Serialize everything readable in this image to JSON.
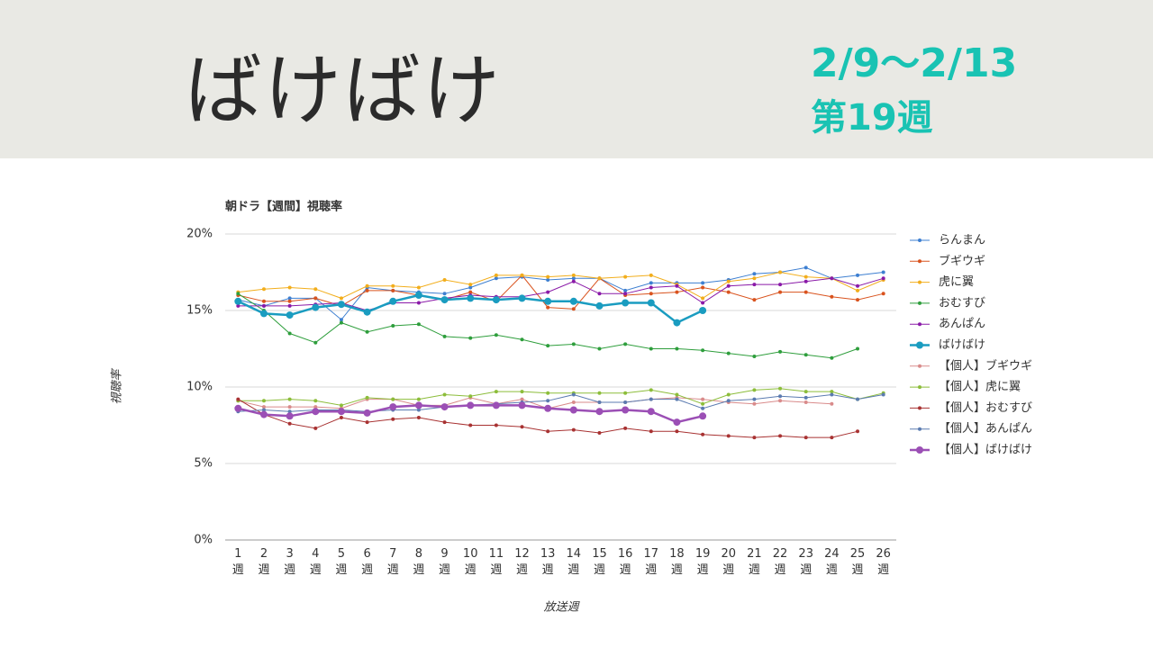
{
  "header": {
    "title": "ばけばけ",
    "date_range": "2/9～2/13",
    "week": "第19週"
  },
  "chart_data": {
    "type": "line",
    "title": "朝ドラ【週間】視聴率",
    "y_label": "視聴率",
    "x_label": "放送週",
    "categories": [
      "1\n週",
      "2\n週",
      "3\n週",
      "4\n週",
      "5\n週",
      "6\n週",
      "7\n週",
      "8\n週",
      "9\n週",
      "10\n週",
      "11\n週",
      "12\n週",
      "13\n週",
      "14\n週",
      "15\n週",
      "16\n週",
      "17\n週",
      "18\n週",
      "19\n週",
      "20\n週",
      "21\n週",
      "22\n週",
      "23\n週",
      "24\n週",
      "25\n週",
      "26\n週"
    ],
    "ylim": [
      0,
      20
    ],
    "yticks": [
      {
        "value": 0,
        "label": "0%"
      },
      {
        "value": 5,
        "label": "5%"
      },
      {
        "value": 10,
        "label": "10%"
      },
      {
        "value": 15,
        "label": "15%"
      },
      {
        "value": 20,
        "label": "20%"
      }
    ],
    "grid": true,
    "legend": "right",
    "series": [
      {
        "name": "らんまん",
        "color": "#3d7fd1",
        "values": [
          15.7,
          15.3,
          15.8,
          15.8,
          14.4,
          16.5,
          16.3,
          16.2,
          16.1,
          16.5,
          17.1,
          17.2,
          17.0,
          17.1,
          17.1,
          16.3,
          16.8,
          16.8,
          16.8,
          17.0,
          17.4,
          17.5,
          17.8,
          17.1,
          17.3,
          17.5
        ]
      },
      {
        "name": "ブギウギ",
        "color": "#d9531e",
        "values": [
          16.0,
          15.6,
          15.6,
          15.8,
          15.3,
          16.3,
          16.3,
          16.0,
          15.7,
          16.2,
          15.6,
          17.3,
          15.2,
          15.1,
          17.1,
          16.0,
          16.1,
          16.2,
          16.5,
          16.2,
          15.7,
          16.2,
          16.2,
          15.9,
          15.7,
          16.1
        ]
      },
      {
        "name": "虎に翼",
        "color": "#f2ae1c",
        "values": [
          16.2,
          16.4,
          16.5,
          16.4,
          15.8,
          16.6,
          16.6,
          16.5,
          17.0,
          16.7,
          17.3,
          17.3,
          17.2,
          17.3,
          17.1,
          17.2,
          17.3,
          16.7,
          15.8,
          16.9,
          17.1,
          17.5,
          17.2,
          17.1,
          16.3,
          17.0
        ]
      },
      {
        "name": "おむすび",
        "color": "#2e9e3c",
        "values": [
          16.1,
          15.0,
          13.5,
          12.9,
          14.2,
          13.6,
          14.0,
          14.1,
          13.3,
          13.2,
          13.4,
          13.1,
          12.7,
          12.8,
          12.5,
          12.8,
          12.5,
          12.5,
          12.4,
          12.2,
          12.0,
          12.3,
          12.1,
          11.9,
          12.5,
          null
        ]
      },
      {
        "name": "あんぱん",
        "color": "#8a1aa8",
        "values": [
          15.3,
          15.3,
          15.3,
          15.4,
          15.5,
          15.0,
          15.5,
          15.5,
          15.8,
          16.0,
          15.9,
          15.9,
          16.2,
          16.9,
          16.1,
          16.1,
          16.5,
          16.6,
          15.5,
          16.6,
          16.7,
          16.7,
          16.9,
          17.1,
          16.6,
          17.1
        ]
      },
      {
        "name": "ばけばけ",
        "color": "#1a9cc0",
        "highlight": true,
        "values": [
          15.6,
          14.8,
          14.7,
          15.2,
          15.4,
          14.9,
          15.6,
          16.0,
          15.7,
          15.8,
          15.7,
          15.8,
          15.6,
          15.6,
          15.3,
          15.5,
          15.5,
          14.2,
          15.0,
          null,
          null,
          null,
          null,
          null,
          null,
          null
        ]
      },
      {
        "name": "【個人】ブギウギ",
        "color": "#d98b8b",
        "values": [
          9.1,
          8.7,
          8.7,
          8.7,
          8.6,
          9.2,
          9.2,
          8.8,
          8.8,
          9.3,
          8.9,
          9.2,
          8.6,
          9.0,
          9.0,
          9.0,
          9.2,
          9.3,
          9.2,
          9.0,
          8.9,
          9.1,
          9.0,
          8.9,
          null,
          null
        ]
      },
      {
        "name": "【個人】虎に翼",
        "color": "#8cbd3a",
        "values": [
          9.1,
          9.1,
          9.2,
          9.1,
          8.8,
          9.3,
          9.2,
          9.2,
          9.5,
          9.4,
          9.7,
          9.7,
          9.6,
          9.6,
          9.6,
          9.6,
          9.8,
          9.5,
          8.9,
          9.5,
          9.8,
          9.9,
          9.7,
          9.7,
          9.2,
          9.6
        ]
      },
      {
        "name": "【個人】おむすび",
        "color": "#a83232",
        "values": [
          9.2,
          8.2,
          7.6,
          7.3,
          8.0,
          7.7,
          7.9,
          8.0,
          7.7,
          7.5,
          7.5,
          7.4,
          7.1,
          7.2,
          7.0,
          7.3,
          7.1,
          7.1,
          6.9,
          6.8,
          6.7,
          6.8,
          6.7,
          6.7,
          7.1,
          null
        ]
      },
      {
        "name": "【個人】あんぱん",
        "color": "#5b7bb0",
        "values": [
          8.4,
          8.5,
          8.4,
          8.5,
          8.5,
          8.4,
          8.5,
          8.5,
          8.7,
          8.8,
          8.9,
          9.0,
          9.1,
          9.5,
          9.0,
          9.0,
          9.2,
          9.2,
          8.6,
          9.1,
          9.2,
          9.4,
          9.3,
          9.5,
          9.2,
          9.5
        ]
      },
      {
        "name": "【個人】ばけばけ",
        "color": "#9b4fb5",
        "highlight": true,
        "values": [
          8.6,
          8.2,
          8.1,
          8.4,
          8.4,
          8.3,
          8.7,
          8.8,
          8.7,
          8.8,
          8.8,
          8.8,
          8.6,
          8.5,
          8.4,
          8.5,
          8.4,
          7.7,
          8.1,
          null,
          null,
          null,
          null,
          null,
          null,
          null
        ]
      }
    ]
  }
}
